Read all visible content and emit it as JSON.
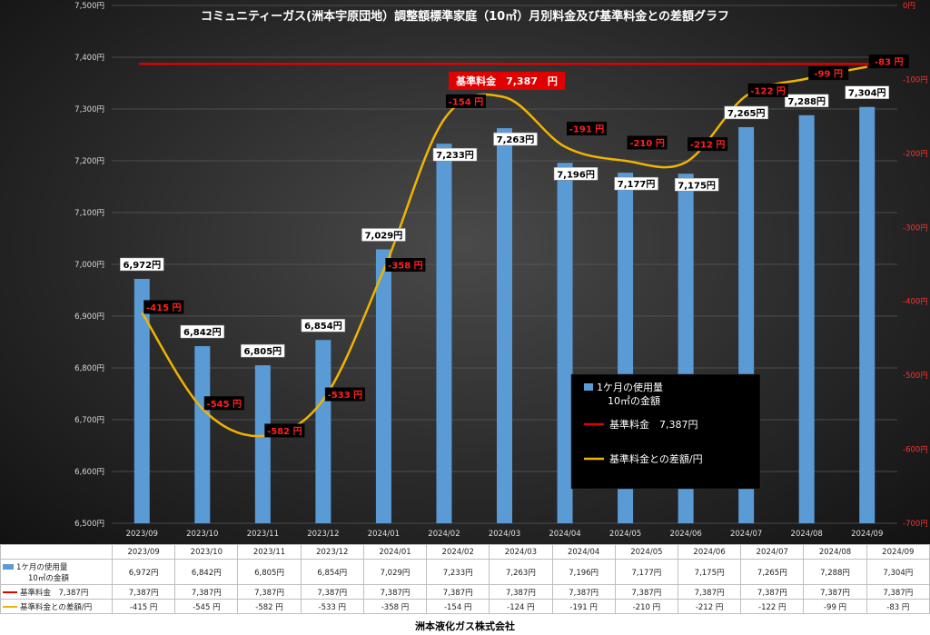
{
  "chart_data": {
    "type": "bar+line",
    "title": "コミュニティーガス(洲本宇原団地）調整額標準家庭（10㎥）月別料金及び基準料金との差額グラフ",
    "categories": [
      "2023/09",
      "2023/10",
      "2023/11",
      "2023/12",
      "2024/01",
      "2024/02",
      "2024/03",
      "2024/04",
      "2024/05",
      "2024/06",
      "2024/07",
      "2024/08",
      "2024/09"
    ],
    "left_axis": {
      "min": 6500,
      "max": 7500,
      "ticks": [
        "6,500円",
        "6,600円",
        "6,700円",
        "6,800円",
        "6,900円",
        "7,000円",
        "7,100円",
        "7,200円",
        "7,300円",
        "7,400円",
        "7,500円"
      ]
    },
    "right_axis": {
      "min": -700,
      "max": 0,
      "ticks": [
        "0円",
        "-100円",
        "-200円",
        "-300円",
        "-400円",
        "-500円",
        "-600円",
        "-700円"
      ]
    },
    "series": [
      {
        "name": "1ケ月の使用量\n10㎥の金額",
        "type": "bar",
        "color": "#5b9bd5",
        "values": [
          6972,
          6842,
          6805,
          6854,
          7029,
          7233,
          7263,
          7196,
          7177,
          7175,
          7265,
          7288,
          7304
        ],
        "labels": [
          "6,972円",
          "6,842円",
          "6,805円",
          "6,854円",
          "7,029円",
          "7,233円",
          "7,263円",
          "7,196円",
          "7,177円",
          "7,175円",
          "7,265円",
          "7,288円",
          "7,304円"
        ]
      },
      {
        "name": "基準料金　7,387円",
        "type": "line",
        "color": "#e00000",
        "values": [
          7387,
          7387,
          7387,
          7387,
          7387,
          7387,
          7387,
          7387,
          7387,
          7387,
          7387,
          7387,
          7387
        ],
        "labels": [
          "7,387円",
          "7,387円",
          "7,387円",
          "7,387円",
          "7,387円",
          "7,387円",
          "7,387円",
          "7,387円",
          "7,387円",
          "7,387円",
          "7,387円",
          "7,387円",
          "7,387円"
        ]
      },
      {
        "name": "基準料金との差額/円",
        "type": "line",
        "color": "#f0b400",
        "values": [
          -415,
          -545,
          -582,
          -533,
          -358,
          -154,
          -124,
          -191,
          -210,
          -212,
          -122,
          -99,
          -83
        ],
        "labels": [
          "-415 円",
          "-545 円",
          "-582 円",
          "-533 円",
          "-358 円",
          "-154 円",
          "-124 円",
          "-191 円",
          "-210 円",
          "-212 円",
          "-122 円",
          "-99 円",
          "-83 円"
        ]
      }
    ],
    "annotation": "基準料金　7,387　円",
    "legend": {
      "placement": "lower-right",
      "items": [
        {
          "label1": "1ケ月の使用量",
          "label2": "10㎥の金額",
          "color": "#5b9bd5",
          "kind": "bar"
        },
        {
          "label1": "基準料金　7,387円",
          "label2": "",
          "color": "#e00000",
          "kind": "line"
        },
        {
          "label1": "基準料金との差額/円",
          "label2": "",
          "color": "#f0b400",
          "kind": "line"
        }
      ]
    }
  },
  "table": {
    "row_labels": {
      "usage1": "1ケ月の使用量",
      "usage2": "10㎥の金額",
      "base": "基準料金　7,387円",
      "diff": "基準料金との差額/円"
    },
    "diff_labels": [
      "-415 円",
      "-545 円",
      "-582 円",
      "-533 円",
      "-358 円",
      "-154 円",
      "-124 円",
      "-191 円",
      "-210 円",
      "-212 円",
      "-122 円",
      "-99 円",
      "-83 円"
    ]
  },
  "footer": {
    "company": "洲本液化ガス株式会社"
  },
  "colors": {
    "bar": "#5b9bd5",
    "base_line": "#e00000",
    "diff_line": "#f0b400",
    "label_bg": "#000000",
    "neg_text": "#ff2020"
  }
}
